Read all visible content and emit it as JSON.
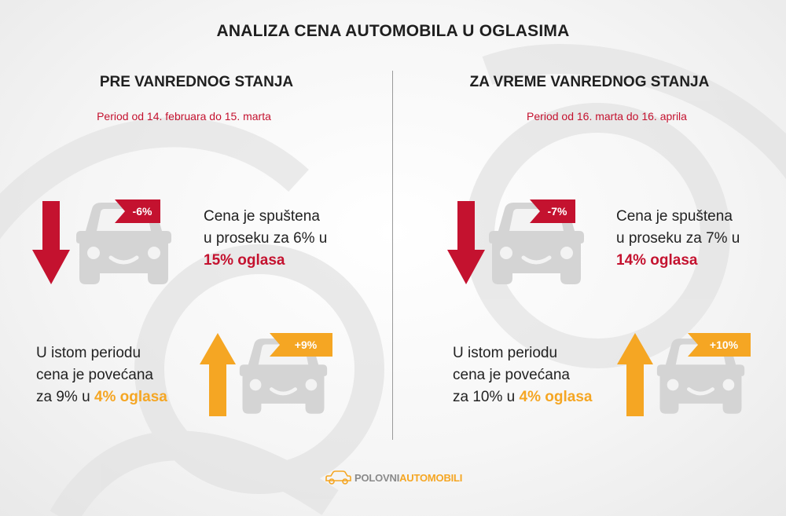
{
  "title": "ANALIZA CENA AUTOMOBILA U OGLASIMA",
  "colors": {
    "red": "#c4122f",
    "orange": "#f5a623",
    "car_gray": "#d4d4d4"
  },
  "left": {
    "heading": "PRE VANREDNOG STANJA",
    "period": "Period od 14. februara do 15. marta",
    "down": {
      "tag": "-6%",
      "line1": "Cena je spuštena",
      "line2": "u proseku za 6% u",
      "highlight": "15% oglasa"
    },
    "up": {
      "tag": "+9%",
      "line1": "U istom periodu",
      "line2": "cena je povećana",
      "line3": "za 9% u",
      "highlight": "4% oglasa"
    }
  },
  "right": {
    "heading": "ZA VREME VANREDNOG STANJA",
    "period": "Period od 16. marta do 16. aprila",
    "down": {
      "tag": "-7%",
      "line1": "Cena je spuštena",
      "line2": "u proseku za 7% u",
      "highlight": "14% oglasa"
    },
    "up": {
      "tag": "+10%",
      "line1": "U istom periodu",
      "line2": "cena je povećana",
      "line3": "za 10% u",
      "highlight": "4% oglasa"
    }
  },
  "logo": {
    "part1": "POLOVNI",
    "part2": "AUTOMOBILI",
    "icon": "car-outline-icon"
  }
}
